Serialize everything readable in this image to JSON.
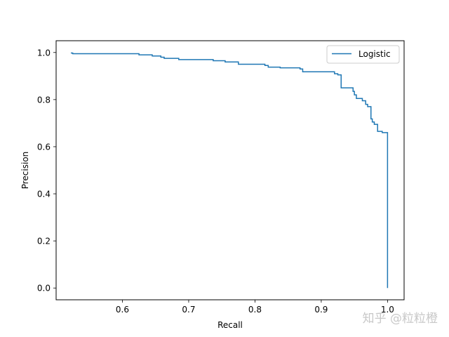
{
  "chart_data": {
    "type": "line",
    "xlabel": "Recall",
    "ylabel": "Precision",
    "xlim": [
      0.5,
      1.025
    ],
    "ylim": [
      -0.05,
      1.05
    ],
    "xticks": [
      "0.6",
      "0.7",
      "0.8",
      "0.9",
      "1.0"
    ],
    "yticks": [
      "0.0",
      "0.2",
      "0.4",
      "0.6",
      "0.8",
      "1.0"
    ],
    "grid": false,
    "legend_position": "top-right",
    "series": [
      {
        "name": "Logistic",
        "color": "#1f77b4",
        "x": [
          0.523,
          0.523,
          0.525,
          0.525,
          0.625,
          0.625,
          0.645,
          0.645,
          0.658,
          0.658,
          0.663,
          0.663,
          0.685,
          0.685,
          0.737,
          0.737,
          0.755,
          0.755,
          0.775,
          0.775,
          0.815,
          0.815,
          0.82,
          0.82,
          0.838,
          0.838,
          0.868,
          0.868,
          0.872,
          0.872,
          0.92,
          0.92,
          0.925,
          0.925,
          0.93,
          0.93,
          0.93,
          0.93,
          0.948,
          0.948,
          0.95,
          0.95,
          0.953,
          0.953,
          0.962,
          0.962,
          0.967,
          0.967,
          0.97,
          0.97,
          0.975,
          0.975,
          0.977,
          0.977,
          0.98,
          0.98,
          0.985,
          0.985,
          0.992,
          0.992,
          1.0,
          1.0
        ],
        "y": [
          1.0,
          0.998,
          0.998,
          0.995,
          0.995,
          0.99,
          0.99,
          0.985,
          0.985,
          0.98,
          0.98,
          0.975,
          0.975,
          0.97,
          0.97,
          0.965,
          0.965,
          0.96,
          0.96,
          0.95,
          0.95,
          0.945,
          0.945,
          0.938,
          0.938,
          0.935,
          0.935,
          0.93,
          0.93,
          0.918,
          0.918,
          0.91,
          0.91,
          0.905,
          0.905,
          0.9,
          0.9,
          0.85,
          0.85,
          0.835,
          0.835,
          0.82,
          0.82,
          0.805,
          0.805,
          0.795,
          0.795,
          0.78,
          0.78,
          0.77,
          0.77,
          0.718,
          0.718,
          0.705,
          0.705,
          0.695,
          0.695,
          0.665,
          0.665,
          0.66,
          0.66,
          0.0
        ]
      }
    ]
  },
  "watermark": "知乎 @粒粒橙"
}
